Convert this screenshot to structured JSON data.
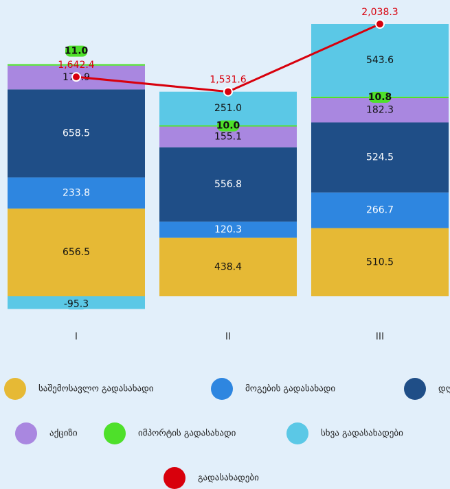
{
  "chart_data": {
    "type": "stacked_bar_line",
    "categories": [
      "I",
      "II",
      "III"
    ],
    "series": [
      {
        "name": "საშემოსავლო გადასახადი",
        "color": "#e6b935",
        "values": [
          656.5,
          438.4,
          510.5
        ],
        "value_labels": [
          "656.5",
          "438.4",
          "510.5"
        ]
      },
      {
        "name": "მოგების გადასახადი",
        "color": "#2e86e0",
        "values": [
          233.8,
          120.3,
          266.7
        ],
        "value_labels": [
          "233.8",
          "120.3",
          "266.7"
        ]
      },
      {
        "name": "დღგ",
        "color": "#1f4e87",
        "values": [
          658.5,
          556.8,
          524.5
        ],
        "value_labels": [
          "658.5",
          "556.8",
          "524.5"
        ]
      },
      {
        "name": "აქციზი",
        "color": "#a987e0",
        "values": [
          177.9,
          155.1,
          182.3
        ],
        "value_labels": [
          "177.9",
          "155.1",
          "182.3"
        ]
      },
      {
        "name": "იმპორტის გადასახადი",
        "color": "#4ee02a",
        "values": [
          11.0,
          10.0,
          10.8
        ],
        "value_labels": [
          "11.0",
          "10.0",
          "10.8"
        ]
      },
      {
        "name": "სხვა გადასახადები",
        "color": "#5bc8e6",
        "values": [
          -95.3,
          251.0,
          543.6
        ],
        "value_labels": [
          "-95.3",
          "251.0",
          "543.6"
        ]
      },
      {
        "name": "გადასახადები",
        "color": "#d8000c",
        "line": true,
        "values": [
          1642.4,
          1531.6,
          2038.3
        ],
        "value_labels": [
          "1,642.4",
          "1,531.6",
          "2,038.3"
        ]
      }
    ]
  }
}
